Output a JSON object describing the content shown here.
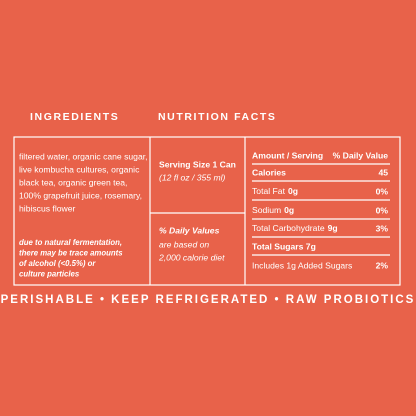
{
  "headings": {
    "ingredients": "INGREDIENTS",
    "nutrition": "NUTRITION FACTS"
  },
  "ingredients": [
    "filtered water, organic cane sugar,",
    "live kombucha cultures, organic",
    "black tea, organic green tea,",
    "100% grapefruit juice, rosemary,",
    "hibiscus flower"
  ],
  "note": [
    "due to natural fermentation,",
    "there may be trace amounts",
    "of alcohol (<0.5%) or",
    "culture particles"
  ],
  "serving": {
    "size": "Serving Size 1 Can",
    "volume": "(12 fl oz / 355 ml)"
  },
  "daily_values": {
    "title": "% Daily Values",
    "lines": [
      "are based on",
      "2,000 calorie diet"
    ]
  },
  "nutrition": {
    "header": {
      "amount": "Amount / Serving",
      "dv": "% Daily Value"
    },
    "calories": {
      "label": "Calories",
      "value": "45"
    },
    "total_fat": {
      "label": "Total Fat",
      "amount": "0g",
      "dv": "0%"
    },
    "sodium": {
      "label": "Sodium",
      "amount": "0g",
      "dv": "0%"
    },
    "total_carbohydrate": {
      "label": "Total Carbohydrate",
      "amount": "9g",
      "dv": "3%"
    },
    "total_sugars": {
      "label": "Total Sugars 7g"
    },
    "added_sugars": {
      "label": "Includes 1g Added Sugars",
      "dv": "2%"
    }
  },
  "footer": "PERISHABLE • KEEP REFRIGERATED • RAW PROBIOTICS"
}
